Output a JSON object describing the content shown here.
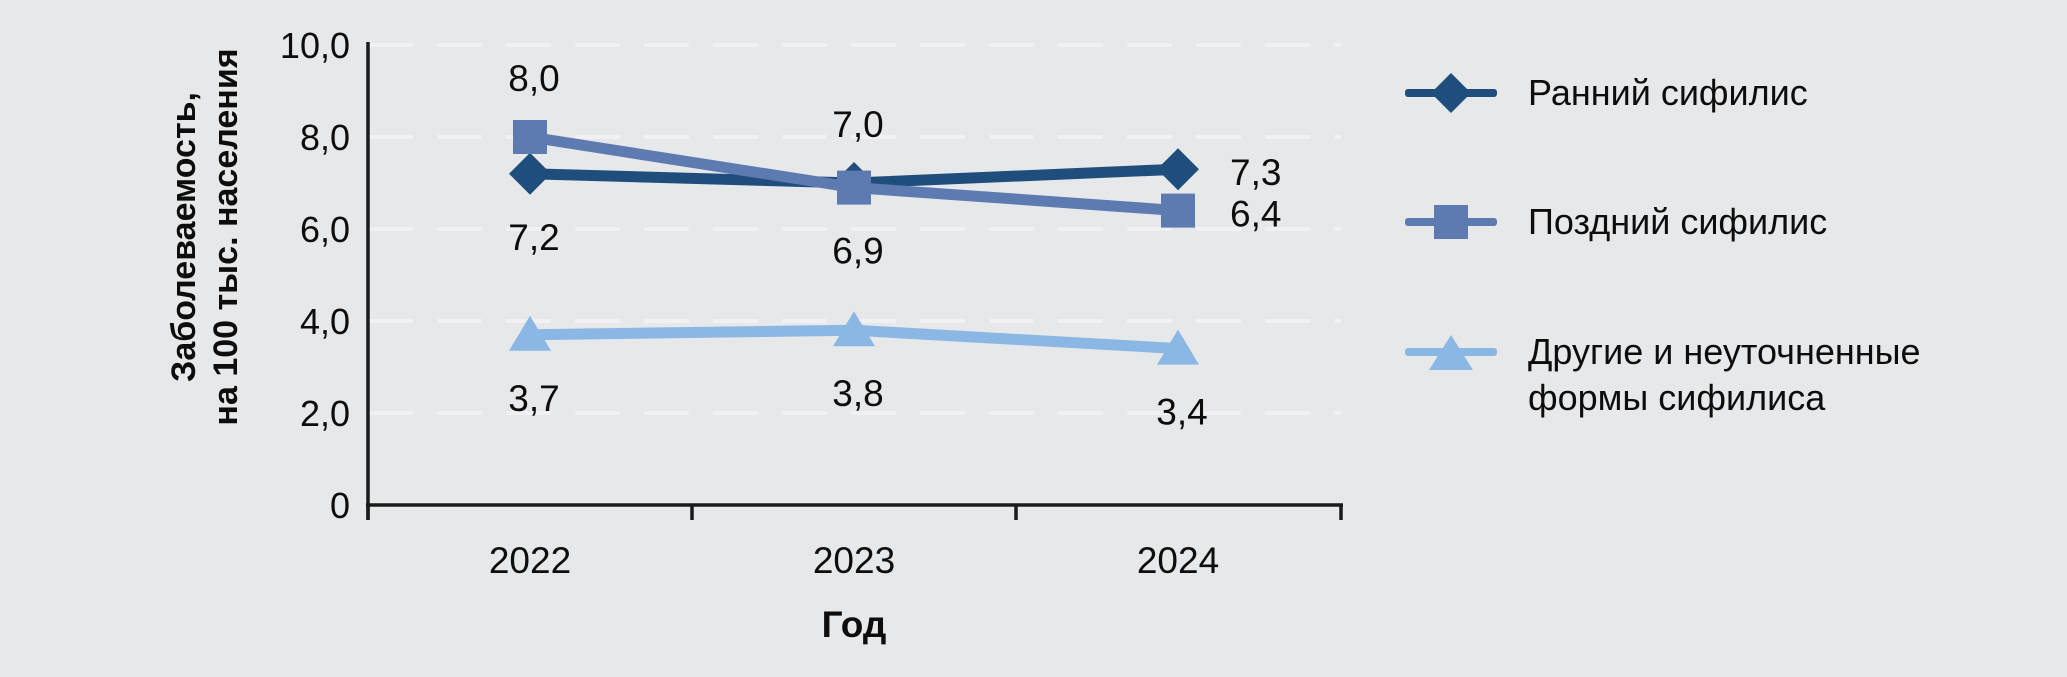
{
  "figure": {
    "background": "#e7e8e9",
    "y_axis_title_line1": "Заболеваемость,",
    "y_axis_title_line2": "на 100 тыс. населения",
    "x_axis_title": "Год"
  },
  "chart_data": {
    "type": "line",
    "title": "",
    "xlabel": "Год",
    "ylabel": "Заболеваемость, на 100 тыс. населения",
    "categories": [
      "2022",
      "2023",
      "2024"
    ],
    "ylim": [
      0,
      10
    ],
    "grid": "horizontal-dashed",
    "legend_position": "right",
    "yticks": [
      {
        "label": "0",
        "value": 0
      },
      {
        "label": "2,0",
        "value": 2
      },
      {
        "label": "4,0",
        "value": 4
      },
      {
        "label": "6,0",
        "value": 6
      },
      {
        "label": "8,0",
        "value": 8
      },
      {
        "label": "10,0",
        "value": 10
      }
    ],
    "series": [
      {
        "name": "Ранний сифилис",
        "marker": "diamond",
        "color": "#1f4e7c",
        "values": [
          7.2,
          7.0,
          7.3
        ],
        "point_labels": [
          "7,2",
          "7,0",
          "7,3"
        ],
        "label_positions": [
          "below",
          "above",
          "right"
        ]
      },
      {
        "name": "Поздний сифилис",
        "marker": "square",
        "color": "#5d7ab1",
        "values": [
          8.0,
          6.9,
          6.4
        ],
        "point_labels": [
          "8,0",
          "6,9",
          "6,4"
        ],
        "label_positions": [
          "above",
          "below",
          "right"
        ]
      },
      {
        "name": "Другие и неуточненные формы сифилиса",
        "marker": "triangle",
        "color": "#8ab7e4",
        "values": [
          3.7,
          3.8,
          3.4
        ],
        "point_labels": [
          "3,7",
          "3,8",
          "3,4"
        ],
        "label_positions": [
          "below",
          "below",
          "below"
        ]
      }
    ]
  },
  "legend": {
    "items": [
      {
        "label": "Ранний сифилис"
      },
      {
        "label": "Поздний сифилис"
      },
      {
        "label": "Другие и неуточненные\nформы сифилиса"
      }
    ]
  },
  "colors": {
    "background": "#e7e8e9",
    "axis": "#1a1a1a",
    "gridline": "#f1f1f3",
    "text": "#0d0d0d",
    "series_early": "#1f4e7c",
    "series_late": "#5d7ab1",
    "series_other": "#8ab7e4"
  }
}
